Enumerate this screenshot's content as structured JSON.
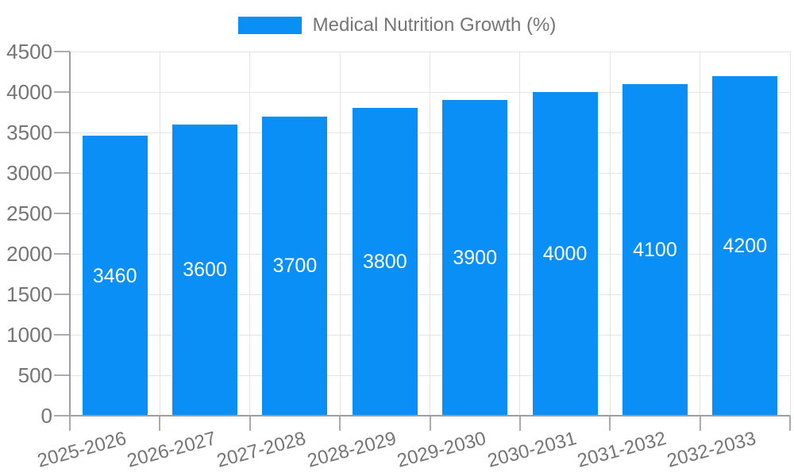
{
  "colors": {
    "bar": "#0a8ff7",
    "grid": "#e4e4e4",
    "axis": "#9e9e9e",
    "tick": "#ababab",
    "label_text": "#757575",
    "bar_label_text": "#ffffff"
  },
  "chart_data": {
    "type": "bar",
    "title": "Medical Nutrition Growth (%)",
    "legend": [
      "Medical Nutrition Growth (%)"
    ],
    "legend_position": "top-center",
    "categories": [
      "2025-2026",
      "2026-2027",
      "2027-2028",
      "2028-2029",
      "2029-2030",
      "2030-2031",
      "2031-2032",
      "2032-2033"
    ],
    "values": [
      3460,
      3600,
      3700,
      3800,
      3900,
      4000,
      4100,
      4200
    ],
    "bar_value_labels": [
      "3460",
      "3600",
      "3700",
      "3800",
      "3900",
      "4000",
      "4100",
      "4200"
    ],
    "xlabel": "",
    "ylabel": "",
    "ylim": [
      0,
      4500
    ],
    "y_ticks": [
      0,
      500,
      1000,
      1500,
      2000,
      2500,
      3000,
      3500,
      4000,
      4500
    ],
    "grid": true,
    "x_tick_rotation_deg": -15
  }
}
